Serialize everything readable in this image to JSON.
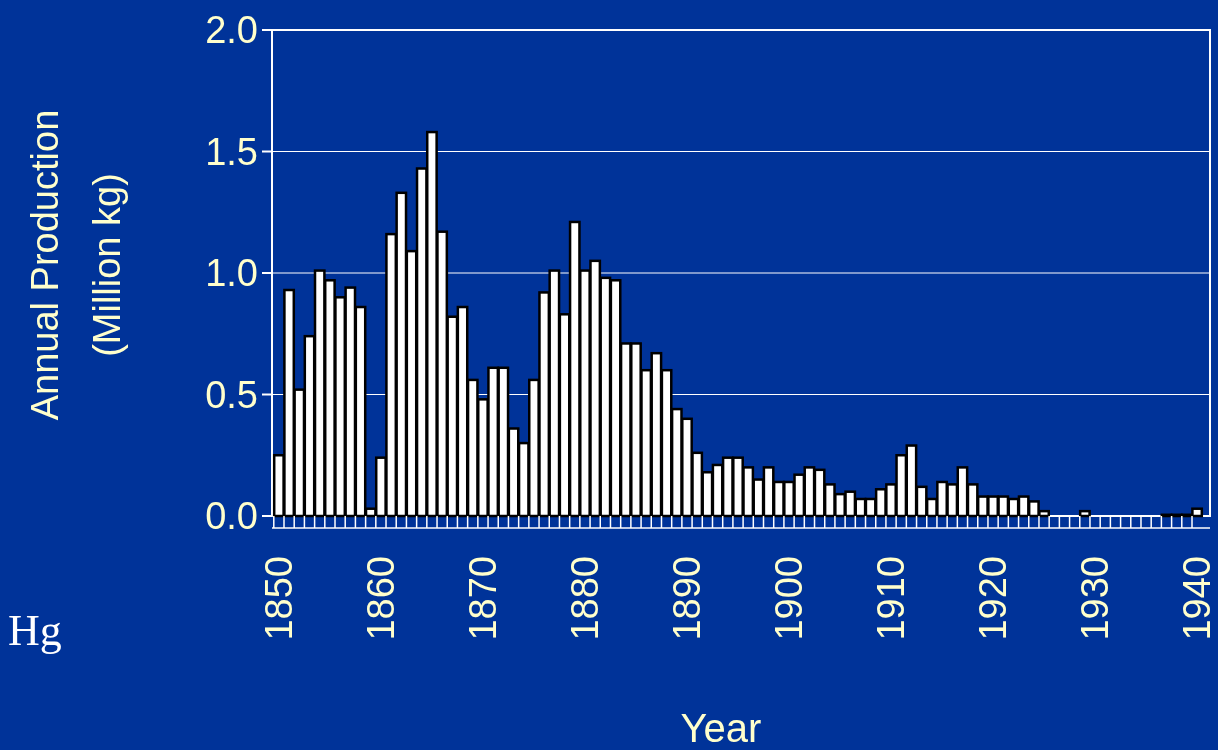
{
  "chart_data": {
    "type": "bar",
    "ylabel": "Annual Production\n(Million kg)",
    "xlabel": "Year",
    "annotations": [
      "Hg"
    ],
    "categories": [
      "1850",
      null,
      null,
      null,
      null,
      null,
      null,
      null,
      null,
      null,
      "1860",
      null,
      null,
      null,
      null,
      null,
      null,
      null,
      null,
      null,
      "1870",
      null,
      null,
      null,
      null,
      null,
      null,
      null,
      null,
      null,
      "1880",
      null,
      null,
      null,
      null,
      null,
      null,
      null,
      null,
      null,
      "1890",
      null,
      null,
      null,
      null,
      null,
      null,
      null,
      null,
      null,
      "1900",
      null,
      null,
      null,
      null,
      null,
      null,
      null,
      null,
      null,
      "1910",
      null,
      null,
      null,
      null,
      null,
      null,
      null,
      null,
      null,
      "1920",
      null,
      null,
      null,
      null,
      null,
      null,
      null,
      null,
      null,
      "1930",
      null,
      null,
      null,
      null,
      null,
      null,
      null,
      null,
      null,
      "1940"
    ],
    "values": [
      0.25,
      0.93,
      0.52,
      0.74,
      1.01,
      0.97,
      0.9,
      0.94,
      0.86,
      0.03,
      0.24,
      1.16,
      1.33,
      1.09,
      1.43,
      1.58,
      1.17,
      0.82,
      0.86,
      0.56,
      0.48,
      0.61,
      0.61,
      0.36,
      0.3,
      0.56,
      0.92,
      1.01,
      0.83,
      1.21,
      1.01,
      1.05,
      0.98,
      0.97,
      0.71,
      0.71,
      0.6,
      0.67,
      0.6,
      0.44,
      0.4,
      0.26,
      0.18,
      0.21,
      0.24,
      0.24,
      0.2,
      0.15,
      0.2,
      0.14,
      0.14,
      0.17,
      0.2,
      0.19,
      0.13,
      0.09,
      0.1,
      0.07,
      0.07,
      0.11,
      0.13,
      0.25,
      0.29,
      0.12,
      0.07,
      0.14,
      0.13,
      0.2,
      0.13,
      0.08,
      0.08,
      0.08,
      0.07,
      0.08,
      0.06,
      0.02,
      0,
      0,
      0,
      0.02,
      0,
      0,
      0,
      0,
      0,
      0,
      0,
      0.005,
      0.005,
      0.005,
      0.03
    ],
    "color": "#ffffff",
    "ylim": [
      0,
      2
    ],
    "yticks": [
      {
        "value": 0,
        "label": "0.0"
      },
      {
        "value": 0.5,
        "label": "0.5"
      },
      {
        "value": 1,
        "label": "1.0"
      },
      {
        "value": 1.5,
        "label": "1.5"
      },
      {
        "value": 2,
        "label": "2.0"
      }
    ],
    "grid": "y"
  }
}
